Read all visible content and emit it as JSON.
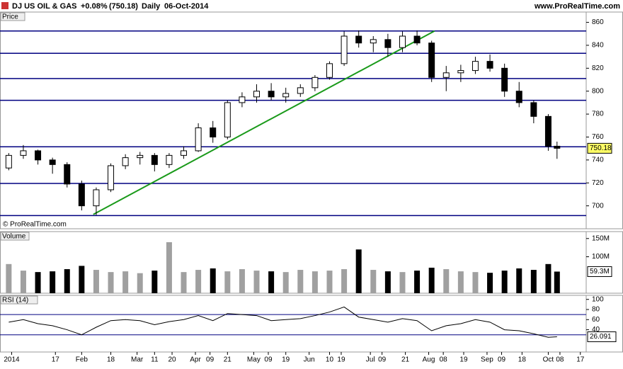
{
  "header": {
    "name": "DJ US OIL & GAS",
    "change": "+0.08%",
    "price": "(750.18)",
    "interval": "Daily",
    "date": "06-Oct-2014",
    "website": "www.ProRealTime.com"
  },
  "chart_data": [
    {
      "type": "candlestick",
      "panel_label": "Price",
      "copyright": "© ProRealTime.com",
      "x": [
        2,
        7,
        12,
        17,
        22,
        27,
        32,
        37,
        42,
        47,
        52,
        57,
        62,
        67,
        72,
        77,
        82,
        87,
        92,
        97,
        102,
        107,
        112,
        117,
        122,
        127,
        132,
        137,
        142,
        147,
        152,
        157,
        162,
        167,
        172,
        177,
        182,
        187,
        190
      ],
      "open": [
        733,
        744,
        748,
        740,
        736,
        719,
        700,
        714,
        735,
        742,
        744,
        736,
        744,
        748,
        768,
        760,
        790,
        795,
        800,
        795,
        798,
        803,
        812,
        824,
        848,
        842,
        845,
        838,
        848,
        842,
        812,
        816,
        818,
        826,
        820,
        800,
        790,
        778,
        752
      ],
      "high": [
        746,
        753,
        749,
        742,
        738,
        722,
        716,
        737,
        745,
        747,
        746,
        746,
        752,
        772,
        774,
        792,
        799,
        806,
        807,
        803,
        806,
        814,
        826,
        852,
        853,
        848,
        850,
        852,
        853,
        844,
        822,
        823,
        830,
        832,
        824,
        808,
        792,
        780,
        756
      ],
      "low": [
        731,
        741,
        736,
        728,
        716,
        696,
        692,
        712,
        732,
        736,
        730,
        733,
        741,
        747,
        755,
        758,
        786,
        790,
        792,
        790,
        795,
        800,
        810,
        822,
        838,
        834,
        830,
        834,
        840,
        808,
        800,
        808,
        815,
        817,
        795,
        786,
        772,
        748,
        741
      ],
      "close": [
        744,
        748,
        740,
        736,
        719,
        700,
        714,
        735,
        742,
        744,
        736,
        744,
        748,
        768,
        760,
        790,
        795,
        800,
        795,
        798,
        803,
        812,
        824,
        848,
        842,
        845,
        838,
        848,
        842,
        812,
        816,
        818,
        826,
        820,
        800,
        790,
        778,
        752,
        750.18
      ],
      "up_color": "#ffffff",
      "down_color": "#000000",
      "xlim": [
        -1,
        200
      ],
      "ylim": [
        680,
        869
      ],
      "yticks": [
        700,
        720,
        740,
        760,
        780,
        800,
        820,
        840,
        860
      ],
      "hlines": [
        852.5,
        833,
        811,
        792,
        751.5,
        719.5,
        691.5
      ],
      "hline_color": "#000080",
      "trendline": {
        "x": [
          31,
          148
        ],
        "y": [
          692.5,
          852.5
        ],
        "color": "#1a9a1a"
      },
      "last_color": "#ffff66",
      "xticks": [
        {
          "value": 3,
          "label": "2014"
        },
        {
          "value": 18,
          "label": "17"
        },
        {
          "value": 27,
          "label": "Feb"
        },
        {
          "value": 37,
          "label": "18"
        },
        {
          "value": 46,
          "label": "Mar"
        },
        {
          "value": 52,
          "label": "11"
        },
        {
          "value": 58,
          "label": "20"
        },
        {
          "value": 66,
          "label": "Apr"
        },
        {
          "value": 71,
          "label": "09"
        },
        {
          "value": 77,
          "label": "21"
        },
        {
          "value": 86,
          "label": "May"
        },
        {
          "value": 91,
          "label": "09"
        },
        {
          "value": 97,
          "label": "19"
        },
        {
          "value": 105,
          "label": "Jun"
        },
        {
          "value": 112,
          "label": "10"
        },
        {
          "value": 116,
          "label": "19"
        },
        {
          "value": 126,
          "label": "Jul"
        },
        {
          "value": 130,
          "label": "09"
        },
        {
          "value": 138,
          "label": "21"
        },
        {
          "value": 146,
          "label": "Aug"
        },
        {
          "value": 151,
          "label": "08"
        },
        {
          "value": 158,
          "label": "19"
        },
        {
          "value": 166,
          "label": "Sep"
        },
        {
          "value": 171,
          "label": "09"
        },
        {
          "value": 178,
          "label": "18"
        },
        {
          "value": 187,
          "label": "Oct"
        },
        {
          "value": 191,
          "label": "08"
        },
        {
          "value": 198,
          "label": "17"
        }
      ]
    },
    {
      "type": "bar",
      "panel_label": "Volume",
      "values": [
        80,
        62,
        58,
        60,
        66,
        75,
        64,
        58,
        60,
        55,
        62,
        140,
        58,
        64,
        68,
        60,
        66,
        62,
        60,
        58,
        64,
        60,
        62,
        66,
        120,
        64,
        60,
        58,
        62,
        70,
        66,
        60,
        58,
        56,
        62,
        68,
        64,
        80,
        59.3
      ],
      "value_labels": [
        null,
        null,
        null,
        null,
        null,
        null,
        null,
        null,
        null,
        null,
        null,
        null,
        null,
        null,
        null,
        null,
        null,
        null,
        null,
        null,
        null,
        null,
        null,
        null,
        null,
        null,
        null,
        null,
        null,
        null,
        null,
        null,
        null,
        null,
        null,
        null,
        null,
        null,
        "59.3M"
      ],
      "up_color": "#a0a0a0",
      "down_color": "#000000",
      "ylim": [
        0,
        169
      ],
      "yticks": [
        {
          "value": 100,
          "label": "100M"
        },
        {
          "value": 150,
          "label": "150M"
        }
      ]
    },
    {
      "type": "line",
      "panel_label": "RSI (14)",
      "values": [
        55,
        60,
        52,
        48,
        40,
        30,
        45,
        58,
        60,
        58,
        50,
        56,
        60,
        68,
        58,
        72,
        70,
        68,
        58,
        60,
        62,
        68,
        75,
        85,
        65,
        60,
        55,
        62,
        58,
        38,
        48,
        52,
        60,
        55,
        40,
        38,
        32,
        25,
        26.091
      ],
      "color": "#000000",
      "levels": [
        70,
        30
      ],
      "level_color": "#000080",
      "ylim": [
        -4,
        108
      ],
      "yticks": [
        40,
        60,
        80,
        100
      ]
    }
  ]
}
